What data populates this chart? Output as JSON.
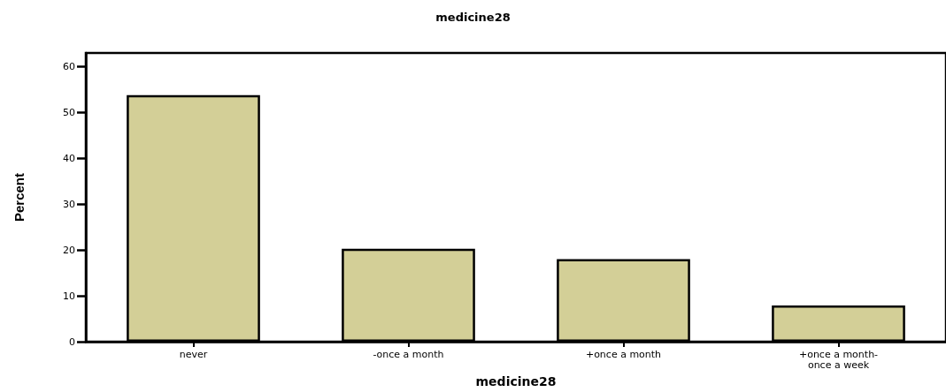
{
  "chart_data": {
    "type": "bar",
    "title": "medicine28",
    "xlabel": "medicine28",
    "ylabel": "Percent",
    "categories": [
      "never",
      "-once a month",
      "+once a month",
      "+once a month-\nonce a week"
    ],
    "values": [
      53.8,
      20.3,
      18.0,
      7.9
    ],
    "color": "#d3cf97",
    "ylim": [
      0,
      63
    ],
    "yticks": [
      0,
      10,
      20,
      30,
      40,
      50,
      60
    ],
    "grid": false
  }
}
